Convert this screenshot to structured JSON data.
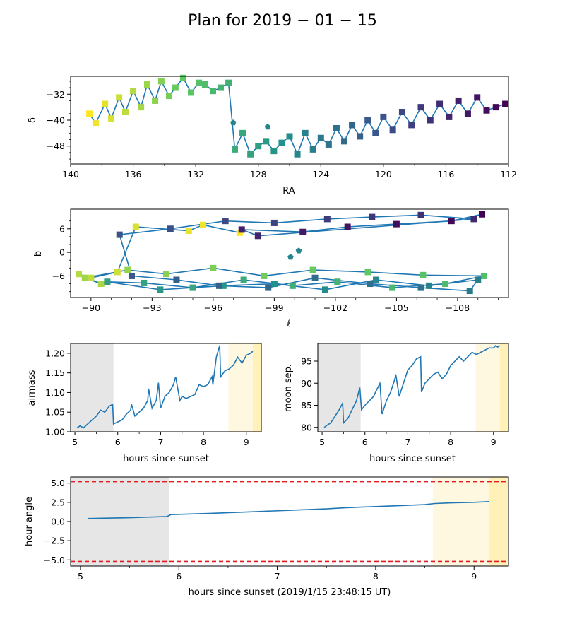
{
  "figure": {
    "title": "Plan for 2019 − 01 − 15"
  },
  "colors": {
    "line": "#1f77b4",
    "marker_scale": [
      "#440154",
      "#3b528b",
      "#21918c",
      "#5ec962",
      "#fde725"
    ],
    "twilight_gray": "#e6e6e6",
    "twilight_light": "#fff8e1",
    "twilight_yellow": "#fff1b8",
    "limit_line": "#e41a1c"
  },
  "chart_data": [
    {
      "id": "sky-radec",
      "type": "scatter",
      "xlabel": "RA",
      "ylabel": "δ",
      "xlim": [
        140,
        112
      ],
      "ylim": [
        -53.5,
        -26.5
      ],
      "xticks": [
        "140",
        "136",
        "132",
        "128",
        "124",
        "120",
        "116",
        "112"
      ],
      "yticks": [
        "-32",
        "-40",
        "-48"
      ],
      "ra": [
        138.8,
        138.4,
        137.8,
        137.4,
        136.9,
        136.5,
        136.0,
        135.5,
        135.1,
        134.6,
        134.2,
        133.7,
        133.3,
        132.8,
        132.3,
        131.8,
        131.4,
        130.9,
        130.4,
        129.9,
        129.5,
        129.0,
        128.5,
        128.0,
        127.5,
        127.0,
        126.5,
        126.0,
        125.5,
        125.0,
        124.5,
        124.0,
        123.5,
        123.0,
        122.5,
        122.0,
        121.5,
        121.0,
        120.5,
        120.0,
        119.4,
        118.8,
        118.2,
        117.6,
        117.0,
        116.4,
        115.8,
        115.2,
        114.6,
        114.0,
        113.4,
        112.8,
        112.2
      ],
      "dec": [
        -38.0,
        -41.0,
        -35.0,
        -39.5,
        -33.0,
        -37.5,
        -31.0,
        -36.0,
        -29.0,
        -34.0,
        -28.0,
        -32.5,
        -30.0,
        -27.0,
        -31.5,
        -28.5,
        -29.0,
        -31.0,
        -30.0,
        -28.5,
        -49.0,
        -44.0,
        -50.5,
        -48.0,
        -46.5,
        -49.5,
        -47.0,
        -45.0,
        -50.5,
        -44.0,
        -49.0,
        -45.5,
        -47.5,
        -42.5,
        -46.5,
        -41.5,
        -45.0,
        -40.0,
        -44.0,
        -39.0,
        -43.0,
        -37.5,
        -41.5,
        -36.0,
        -40.0,
        -35.0,
        -39.0,
        -34.0,
        -38.0,
        -33.0,
        -37.0,
        -36.0,
        -35.0
      ],
      "pointings": [
        {
          "ra": 129.6,
          "dec": -40.8
        },
        {
          "ra": 127.4,
          "dec": -42.1
        }
      ]
    },
    {
      "id": "sky-galactic",
      "type": "scatter",
      "xlabel": "ℓ",
      "ylabel": "b",
      "xlim": [
        -89,
        -110.5
      ],
      "ylim": [
        -11.5,
        11
      ],
      "xticks": [
        "-90",
        "-93",
        "-96",
        "-99",
        "-102",
        "-105",
        "-108"
      ],
      "yticks": [
        "6",
        "0",
        "-6"
      ],
      "l": [
        -97.3,
        -95.5,
        -94.8,
        -92.2,
        -91.3,
        -90.0,
        -89.4,
        -90.5,
        -89.7,
        -91.8,
        -93.7,
        -96.0,
        -98.5,
        -100.9,
        -103.6,
        -106.3,
        -109.3,
        -107.4,
        -104.8,
        -102.1,
        -99.9,
        -97.5,
        -95.0,
        -92.6,
        -90.8,
        -93.4,
        -96.5,
        -99.0,
        -101.5,
        -104.0,
        -106.6,
        -109.0,
        -108.6,
        -106.2,
        -103.7,
        -101.0,
        -98.7,
        -96.3,
        -94.2,
        -92.0,
        -91.4,
        -93.9,
        -96.6,
        -99.0,
        -101.6,
        -103.8,
        -106.2,
        -108.8,
        -98.2,
        -97.4,
        -100.4,
        -102.6,
        -105.0,
        -107.7,
        -109.2
      ],
      "b": [
        5.0,
        7.0,
        5.5,
        6.5,
        -5.0,
        -6.5,
        -5.5,
        -8.0,
        -6.5,
        -4.5,
        -5.5,
        -4.0,
        -6.0,
        -4.5,
        -5.0,
        -5.8,
        -6.0,
        -8.0,
        -9.0,
        -7.5,
        -8.5,
        -7.0,
        -9.0,
        -7.8,
        -7.5,
        -9.5,
        -8.5,
        -8.0,
        -9.5,
        -7.0,
        -8.5,
        -7.0,
        -9.8,
        -9.0,
        -8.0,
        -6.5,
        -9.0,
        -8.5,
        -7.0,
        -6.0,
        4.5,
        6.0,
        8.0,
        7.5,
        8.5,
        9.0,
        9.5,
        8.5,
        4.2,
        5.8,
        5.2,
        6.5,
        7.2,
        8.0,
        9.7
      ],
      "pointings": [
        {
          "l": -100.2,
          "b": 0.4
        },
        {
          "l": -99.8,
          "b": -1.2
        }
      ]
    },
    {
      "id": "airmass",
      "type": "line",
      "xlabel": "hours since sunset",
      "ylabel": "airmass",
      "xlim": [
        4.9,
        9.35
      ],
      "ylim": [
        1.0,
        1.225
      ],
      "xticks": [
        "5",
        "6",
        "7",
        "8",
        "9"
      ],
      "yticks": [
        "1.00",
        "1.05",
        "1.10",
        "1.15",
        "1.20"
      ],
      "twilight": {
        "gray_end": 5.9,
        "light_start": 8.58,
        "yellow_start": 9.15
      },
      "x": [
        5.05,
        5.12,
        5.2,
        5.3,
        5.4,
        5.5,
        5.6,
        5.7,
        5.8,
        5.88,
        5.9,
        6.0,
        6.1,
        6.2,
        6.3,
        6.32,
        6.4,
        6.5,
        6.6,
        6.7,
        6.72,
        6.8,
        6.9,
        6.95,
        7.0,
        7.1,
        7.2,
        7.3,
        7.35,
        7.45,
        7.5,
        7.6,
        7.7,
        7.8,
        7.9,
        8.0,
        8.1,
        8.2,
        8.22,
        8.3,
        8.38,
        8.4,
        8.5,
        8.6,
        8.7,
        8.8,
        8.9,
        9.0,
        9.1,
        9.15
      ],
      "y": [
        1.01,
        1.015,
        1.01,
        1.02,
        1.03,
        1.04,
        1.055,
        1.05,
        1.065,
        1.07,
        1.02,
        1.025,
        1.03,
        1.045,
        1.055,
        1.07,
        1.04,
        1.05,
        1.06,
        1.08,
        1.11,
        1.06,
        1.08,
        1.125,
        1.06,
        1.09,
        1.1,
        1.12,
        1.14,
        1.08,
        1.09,
        1.085,
        1.09,
        1.095,
        1.12,
        1.115,
        1.12,
        1.14,
        1.12,
        1.19,
        1.22,
        1.14,
        1.155,
        1.16,
        1.17,
        1.19,
        1.175,
        1.195,
        1.2,
        1.205
      ]
    },
    {
      "id": "moon-sep",
      "type": "line",
      "xlabel": "hours since sunset",
      "ylabel": "moon sep.",
      "xlim": [
        4.9,
        9.35
      ],
      "ylim": [
        79,
        99
      ],
      "xticks": [
        "5",
        "6",
        "7",
        "8",
        "9"
      ],
      "yticks": [
        "80",
        "85",
        "90",
        "95"
      ],
      "twilight": {
        "gray_end": 5.9,
        "light_start": 8.58,
        "yellow_start": 9.15
      },
      "x": [
        5.05,
        5.12,
        5.2,
        5.3,
        5.4,
        5.48,
        5.5,
        5.6,
        5.7,
        5.8,
        5.88,
        5.92,
        6.0,
        6.1,
        6.2,
        6.3,
        6.35,
        6.4,
        6.5,
        6.6,
        6.7,
        6.72,
        6.8,
        6.9,
        7.0,
        7.1,
        7.2,
        7.3,
        7.32,
        7.4,
        7.5,
        7.6,
        7.7,
        7.8,
        7.9,
        8.0,
        8.1,
        8.2,
        8.3,
        8.4,
        8.5,
        8.6,
        8.7,
        8.8,
        8.9,
        9.0,
        9.05,
        9.1,
        9.15
      ],
      "y": [
        80,
        80.5,
        81,
        82.5,
        84,
        85.5,
        81,
        82,
        84,
        86,
        89,
        84,
        85,
        86,
        87,
        89,
        90,
        83,
        86,
        88,
        91,
        92,
        87,
        90,
        93,
        94,
        95.5,
        96,
        88,
        90,
        91,
        92,
        92.5,
        91,
        92,
        94,
        95,
        96,
        95,
        96,
        97,
        96.5,
        97,
        97.5,
        98,
        98,
        98.5,
        98.2,
        98.5
      ]
    },
    {
      "id": "hour-angle",
      "type": "line",
      "xlabel": "hours since sunset (2019/1/15 23:48:15 UT)",
      "ylabel": "hour angle",
      "xlim": [
        4.9,
        9.35
      ],
      "ylim": [
        -5.8,
        5.8
      ],
      "xticks": [
        "5",
        "6",
        "7",
        "8",
        "9"
      ],
      "yticks": [
        "5.0",
        "2.5",
        "0.0",
        "-2.5",
        "-5.0"
      ],
      "limits": [
        5.2,
        -5.2
      ],
      "twilight": {
        "gray_end": 5.9,
        "light_start": 8.58,
        "yellow_start": 9.15
      },
      "x": [
        5.08,
        5.5,
        5.88,
        5.92,
        6.3,
        6.8,
        7.2,
        7.5,
        7.7,
        8.0,
        8.3,
        8.5,
        8.6,
        8.8,
        9.0,
        9.15
      ],
      "y": [
        0.4,
        0.5,
        0.65,
        0.9,
        1.05,
        1.3,
        1.5,
        1.65,
        1.8,
        1.95,
        2.1,
        2.2,
        2.35,
        2.45,
        2.5,
        2.6
      ]
    }
  ]
}
